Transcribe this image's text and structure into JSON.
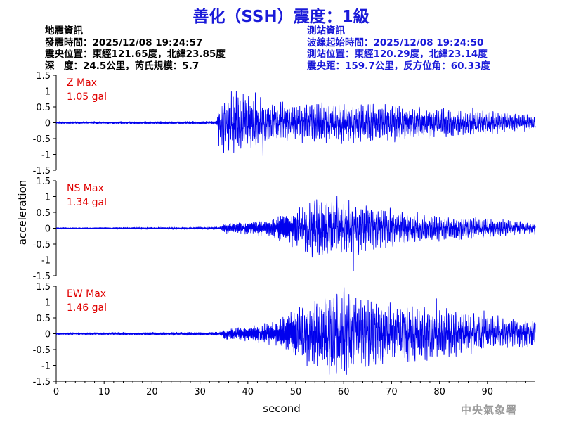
{
  "title": "善化（SSH）震度：1級",
  "info_left": [
    "地震資訊",
    "發震時間：2025/12/08 19:24:57",
    "震央位置：東經121.65度，北緯23.85度",
    "深　度：24.5公里，芮氏規模：5.7"
  ],
  "info_right": [
    "測站資訊",
    "波線起始時間：2025/12/08 19:24:50",
    "測站位置：東經120.29度，北緯23.14度",
    "震央距：159.7公里，反方位角：60.33度"
  ],
  "footer": "中央氣象署",
  "colors": {
    "title": "#1a1ad9",
    "trace": "#0000ee",
    "max_label": "#e00000",
    "axis": "#000000",
    "station_info": "#1a1ad9"
  },
  "chart_data": {
    "type": "line",
    "xlabel": "second",
    "ylabel": "acceleration",
    "xlim": [
      0,
      100
    ],
    "xticks": [
      0,
      10,
      20,
      30,
      40,
      50,
      60,
      70,
      80,
      90
    ],
    "ylim": [
      -1.5,
      1.5
    ],
    "yticks": [
      1.5,
      1,
      0.5,
      0,
      -0.5,
      -1,
      -1.5
    ],
    "panels": [
      {
        "name": "Z Max",
        "max_text": "1.05 gal",
        "max": 1.05,
        "p_onset": 33.5,
        "s_onset": 34.0,
        "envelope": [
          [
            0,
            0.03
          ],
          [
            33.5,
            0.04
          ],
          [
            34,
            0.7
          ],
          [
            36,
            0.85
          ],
          [
            40,
            0.75
          ],
          [
            45,
            0.55
          ],
          [
            50,
            0.5
          ],
          [
            55,
            0.5
          ],
          [
            60,
            0.55
          ],
          [
            65,
            0.5
          ],
          [
            70,
            0.5
          ],
          [
            75,
            0.45
          ],
          [
            80,
            0.4
          ],
          [
            85,
            0.35
          ],
          [
            90,
            0.3
          ],
          [
            95,
            0.25
          ],
          [
            100,
            0.2
          ]
        ]
      },
      {
        "name": "NS Max",
        "max_text": "1.34 gal",
        "max": 1.34,
        "p_onset": 34.0,
        "s_onset": 50.0,
        "envelope": [
          [
            0,
            0.03
          ],
          [
            34,
            0.05
          ],
          [
            35,
            0.18
          ],
          [
            40,
            0.25
          ],
          [
            45,
            0.35
          ],
          [
            50,
            0.7
          ],
          [
            55,
            1.2
          ],
          [
            60,
            1.05
          ],
          [
            65,
            0.9
          ],
          [
            70,
            0.75
          ],
          [
            75,
            0.6
          ],
          [
            80,
            0.5
          ],
          [
            85,
            0.45
          ],
          [
            90,
            0.35
          ],
          [
            95,
            0.3
          ],
          [
            100,
            0.2
          ]
        ]
      },
      {
        "name": "EW Max",
        "max_text": "1.46 gal",
        "max": 1.46,
        "p_onset": 34.0,
        "s_onset": 50.0,
        "envelope": [
          [
            0,
            0.03
          ],
          [
            34,
            0.05
          ],
          [
            35,
            0.15
          ],
          [
            40,
            0.2
          ],
          [
            45,
            0.3
          ],
          [
            50,
            0.7
          ],
          [
            55,
            1.1
          ],
          [
            60,
            1.2
          ],
          [
            65,
            1.0
          ],
          [
            70,
            0.9
          ],
          [
            75,
            0.8
          ],
          [
            80,
            0.7
          ],
          [
            85,
            0.6
          ],
          [
            90,
            0.5
          ],
          [
            95,
            0.45
          ],
          [
            100,
            0.4
          ]
        ]
      }
    ]
  }
}
